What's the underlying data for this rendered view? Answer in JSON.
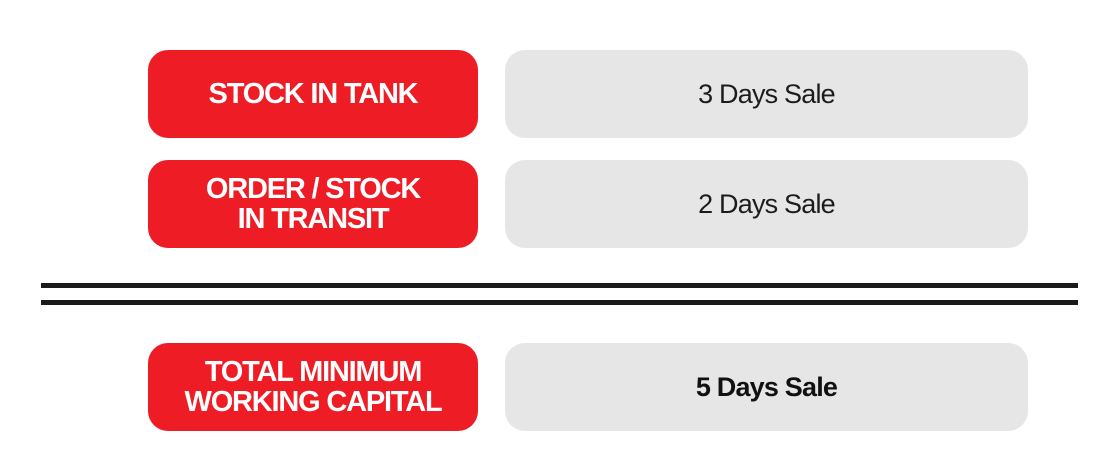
{
  "rows": [
    {
      "label": "STOCK IN TANK",
      "value": "3 Days Sale"
    },
    {
      "label": "ORDER / STOCK\nIN TRANSIT",
      "value": "2 Days Sale"
    },
    {
      "label": "TOTAL MINIMUM\nWORKING CAPITAL",
      "value": "5 Days Sale"
    }
  ],
  "colors": {
    "accent_red": "#ee1c25",
    "value_background": "#e6e6e6",
    "divider": "#1a1a1a"
  }
}
